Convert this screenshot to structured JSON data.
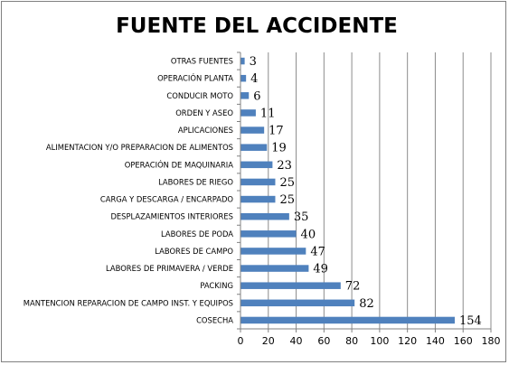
{
  "chart_data": {
    "type": "bar",
    "orientation": "horizontal",
    "title": "FUENTE DEL ACCIDENTE",
    "xlabel": "",
    "ylabel": "",
    "xlim": [
      0,
      180
    ],
    "x_ticks": [
      0,
      20,
      40,
      60,
      80,
      100,
      120,
      140,
      160,
      180
    ],
    "grid": "vertical",
    "legend": "none",
    "bar_color": "#4F81BD",
    "categories": [
      "OTRAS FUENTES",
      "OPERACIÓN PLANTA",
      "CONDUCIR MOTO",
      "ORDEN Y ASEO",
      "APLICACIONES",
      "ALIMENTACION Y/O PREPARACION DE ALIMENTOS",
      "OPERACIÓN DE MAQUINARIA",
      "LABORES DE RIEGO",
      "CARGA Y DESCARGA / ENCARPADO",
      "DESPLAZAMIENTOS INTERIORES",
      "LABORES DE PODA",
      "LABORES DE CAMPO",
      "LABORES DE PRIMAVERA / VERDE",
      "PACKING",
      "MANTENCION REPARACION DE CAMPO INST. Y EQUIPOS",
      "COSECHA"
    ],
    "values": [
      3,
      4,
      6,
      11,
      17,
      19,
      23,
      25,
      25,
      35,
      40,
      47,
      49,
      72,
      82,
      154
    ]
  }
}
